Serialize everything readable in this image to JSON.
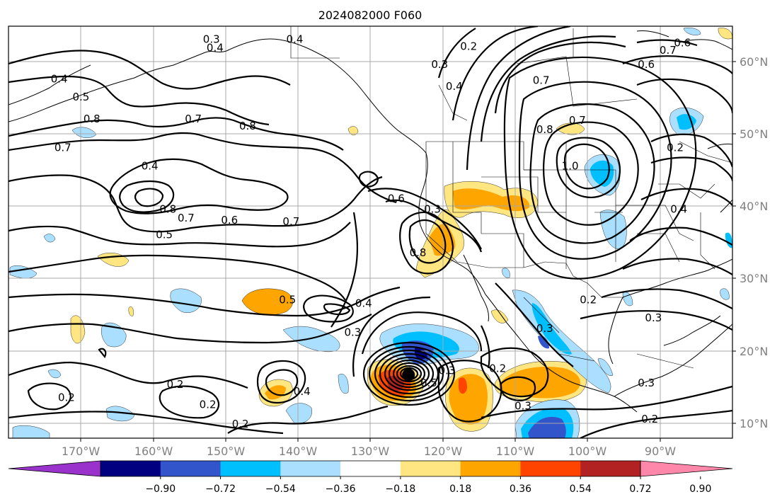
{
  "title": "2024082000 F060",
  "lat_labels": [
    "60°N",
    "50°N",
    "40°N",
    "30°N",
    "20°N",
    "10°N"
  ],
  "lon_labels": [
    "170°W",
    "160°W",
    "150°W",
    "140°W",
    "130°W",
    "120°W",
    "110°W",
    "100°W",
    "90°W"
  ],
  "colorbar": {
    "colors": [
      "#9933cc",
      "#000080",
      "#3355cc",
      "#00bfff",
      "#aadfff",
      "#ffffff",
      "#ffe680",
      "#ffa500",
      "#ff4400",
      "#b22222",
      "#ff88aa"
    ],
    "tick_labels": [
      "−0.90",
      "−0.72",
      "−0.54",
      "−0.36",
      "−0.18",
      "0.18",
      "0.36",
      "0.54",
      "0.72",
      "0.90"
    ]
  },
  "contour_labels": [
    {
      "text": "0.3",
      "lon": -152,
      "lat": 63
    },
    {
      "text": "0.4",
      "lon": -151.5,
      "lat": 61.8
    },
    {
      "text": "0.4",
      "lon": -140.5,
      "lat": 63
    },
    {
      "text": "0.2",
      "lon": -116.5,
      "lat": 62
    },
    {
      "text": "0.3",
      "lon": -120.5,
      "lat": 59.5
    },
    {
      "text": "0.4",
      "lon": -118.5,
      "lat": 56.5
    },
    {
      "text": "0.4",
      "lon": -173,
      "lat": 57.5
    },
    {
      "text": "0.5",
      "lon": -170,
      "lat": 55
    },
    {
      "text": "0.8",
      "lon": -168.5,
      "lat": 52
    },
    {
      "text": "0.7",
      "lon": -172.5,
      "lat": 48
    },
    {
      "text": "0.7",
      "lon": -154.5,
      "lat": 52
    },
    {
      "text": "0.8",
      "lon": -147,
      "lat": 51
    },
    {
      "text": "0.4",
      "lon": -160.5,
      "lat": 45.5
    },
    {
      "text": "0.8",
      "lon": -158,
      "lat": 39.5
    },
    {
      "text": "0.7",
      "lon": -155.5,
      "lat": 38.3
    },
    {
      "text": "0.6",
      "lon": -149.5,
      "lat": 38
    },
    {
      "text": "0.7",
      "lon": -141,
      "lat": 37.8
    },
    {
      "text": "0.5",
      "lon": -158.5,
      "lat": 36
    },
    {
      "text": "0.6",
      "lon": -126.5,
      "lat": 41
    },
    {
      "text": "0.3",
      "lon": -121.5,
      "lat": 39.5
    },
    {
      "text": "0.8",
      "lon": -123.5,
      "lat": 33.5
    },
    {
      "text": "0.5",
      "lon": -141.5,
      "lat": 27
    },
    {
      "text": "0.4",
      "lon": -131,
      "lat": 26.5
    },
    {
      "text": "0.3",
      "lon": -132.5,
      "lat": 22.5
    },
    {
      "text": "0.6",
      "lon": -92,
      "lat": 59.5
    },
    {
      "text": "0.7",
      "lon": -89,
      "lat": 61.5
    },
    {
      "text": "0.6",
      "lon": -87,
      "lat": 62.5
    },
    {
      "text": "0.7",
      "lon": -106.5,
      "lat": 57.3
    },
    {
      "text": "0.7",
      "lon": -101.5,
      "lat": 51.8
    },
    {
      "text": "0.8",
      "lon": -106,
      "lat": 50.5
    },
    {
      "text": "0.2",
      "lon": -88,
      "lat": 48
    },
    {
      "text": "1.0",
      "lon": -102.5,
      "lat": 45.5
    },
    {
      "text": "0.4",
      "lon": -87.5,
      "lat": 39.5
    },
    {
      "text": "0.2",
      "lon": -100,
      "lat": 27
    },
    {
      "text": "0.3",
      "lon": -106,
      "lat": 23
    },
    {
      "text": "0.3",
      "lon": -91,
      "lat": 24.5
    },
    {
      "text": "0.2",
      "lon": -112.5,
      "lat": 17.5
    },
    {
      "text": "0.3",
      "lon": -109,
      "lat": 12.3
    },
    {
      "text": "0.3",
      "lon": -92,
      "lat": 15.5
    },
    {
      "text": "0.2",
      "lon": -91.5,
      "lat": 10.5
    },
    {
      "text": "0.2",
      "lon": -172,
      "lat": 13.5
    },
    {
      "text": "0.2",
      "lon": -157,
      "lat": 15.3
    },
    {
      "text": "0.4",
      "lon": -139.5,
      "lat": 14.3
    },
    {
      "text": "0.2",
      "lon": -152.5,
      "lat": 12.5
    },
    {
      "text": "0.2",
      "lon": -148,
      "lat": 9.8
    },
    {
      "text": "0.3",
      "lon": -119.5,
      "lat": 17.2
    },
    {
      "text": "0.5",
      "lon": -122,
      "lat": 15.5
    }
  ],
  "storm_marker": {
    "lon": -124.8,
    "lat": 16.8
  }
}
